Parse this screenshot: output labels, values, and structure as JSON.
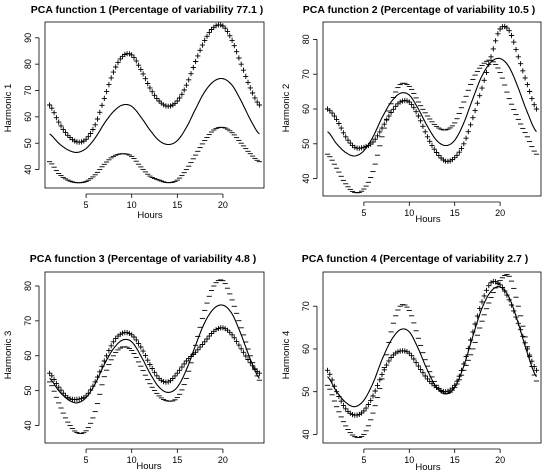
{
  "chart_data": [
    {
      "type": "line",
      "title": "PCA function 1 (Percentage of variability 77.1 )",
      "xlabel": "Hours",
      "ylabel": "Harmonic 1",
      "xlim": [
        0.5,
        24.5
      ],
      "ylim": [
        33,
        96
      ],
      "xticks": [
        5,
        10,
        15,
        20
      ],
      "yticks": [
        40,
        50,
        60,
        70,
        80,
        90
      ],
      "series": [
        {
          "marker": "line",
          "x": [
            1,
            2,
            3,
            4,
            5,
            6,
            7,
            8,
            9,
            10,
            11,
            12,
            13,
            14,
            15,
            16,
            17,
            18,
            19,
            20,
            21,
            22,
            23,
            24
          ],
          "values": [
            53.5,
            50,
            47.5,
            46.5,
            48,
            52,
            57.5,
            62,
            64.5,
            64,
            60,
            55,
            51,
            49.5,
            51,
            56,
            63,
            69.5,
            73.5,
            74.5,
            72,
            66,
            59,
            53.5
          ]
        },
        {
          "marker": "plus",
          "x": [
            1,
            2,
            3,
            4,
            5,
            6,
            7,
            8,
            9,
            10,
            11,
            12,
            13,
            14,
            15,
            16,
            17,
            18,
            19,
            20,
            21,
            22,
            23,
            24
          ],
          "values": [
            64.5,
            58,
            53,
            50.5,
            51.5,
            57,
            67,
            77,
            83,
            83.5,
            78,
            71,
            66,
            64,
            66,
            72,
            81,
            89,
            94,
            94.5,
            89,
            80,
            71,
            64.5
          ]
        },
        {
          "marker": "minus",
          "x": [
            1,
            2,
            3,
            4,
            5,
            6,
            7,
            8,
            9,
            10,
            11,
            12,
            13,
            14,
            15,
            16,
            17,
            18,
            19,
            20,
            21,
            22,
            23,
            24
          ],
          "values": [
            43,
            38.5,
            36,
            35,
            35.5,
            38,
            42,
            45,
            46,
            45,
            41,
            37.5,
            36,
            35,
            36,
            40,
            45.5,
            51,
            55,
            56,
            54,
            50,
            46,
            43
          ]
        }
      ]
    },
    {
      "type": "line",
      "title": "PCA function 2 (Percentage of variability 10.5 )",
      "xlabel": "Hours",
      "ylabel": "Harmonic 2",
      "xlim": [
        0.5,
        24.5
      ],
      "ylim": [
        35,
        85
      ],
      "xticks": [
        5,
        10,
        15,
        20
      ],
      "yticks": [
        40,
        50,
        60,
        70,
        80
      ],
      "series": [
        {
          "marker": "line",
          "x": [
            1,
            2,
            3,
            4,
            5,
            6,
            7,
            8,
            9,
            10,
            11,
            12,
            13,
            14,
            15,
            16,
            17,
            18,
            19,
            20,
            21,
            22,
            23,
            24
          ],
          "values": [
            53.5,
            50,
            47.5,
            46.5,
            48,
            52,
            57.5,
            62,
            64.5,
            64,
            60,
            55,
            51,
            49.5,
            51,
            56,
            63,
            69.5,
            73.5,
            74.5,
            72,
            66,
            59,
            53.5
          ]
        },
        {
          "marker": "plus",
          "x": [
            1,
            2,
            3,
            4,
            5,
            6,
            7,
            8,
            9,
            10,
            11,
            12,
            13,
            14,
            15,
            16,
            17,
            18,
            19,
            20,
            21,
            22,
            23,
            24
          ],
          "values": [
            60,
            57,
            52,
            49,
            49,
            50.5,
            54.5,
            59,
            62,
            62,
            58,
            52,
            47.5,
            45,
            46,
            50,
            57.5,
            66,
            75,
            83,
            82.5,
            75,
            67,
            60
          ]
        },
        {
          "marker": "minus",
          "x": [
            1,
            2,
            3,
            4,
            5,
            6,
            7,
            8,
            9,
            10,
            11,
            12,
            13,
            14,
            15,
            16,
            17,
            18,
            19,
            20,
            21,
            22,
            23,
            24
          ],
          "values": [
            47,
            43,
            38.5,
            36,
            37,
            42,
            52,
            61.5,
            67,
            66.5,
            62,
            58,
            55,
            54,
            56,
            62,
            68.5,
            72.5,
            74,
            70.5,
            63,
            57,
            52,
            47
          ]
        }
      ]
    },
    {
      "type": "line",
      "title": "PCA function 3 (Percentage of variability 4.8 )",
      "xlabel": "Hours",
      "ylabel": "Harmonic 3",
      "xlim": [
        0.5,
        24.5
      ],
      "ylim": [
        35,
        84
      ],
      "xticks": [
        5,
        10,
        15,
        20
      ],
      "yticks": [
        40,
        50,
        60,
        70,
        80
      ],
      "series": [
        {
          "marker": "line",
          "x": [
            1,
            2,
            3,
            4,
            5,
            6,
            7,
            8,
            9,
            10,
            11,
            12,
            13,
            14,
            15,
            16,
            17,
            18,
            19,
            20,
            21,
            22,
            23,
            24
          ],
          "values": [
            53.5,
            50,
            47.5,
            46.5,
            48,
            52,
            57.5,
            62,
            64.5,
            64,
            60,
            55,
            51,
            49.5,
            51,
            56,
            63,
            69.5,
            73.5,
            74.5,
            72,
            66,
            59,
            53.5
          ]
        },
        {
          "marker": "plus",
          "x": [
            1,
            2,
            3,
            4,
            5,
            6,
            7,
            8,
            9,
            10,
            11,
            12,
            13,
            14,
            15,
            16,
            17,
            18,
            19,
            20,
            21,
            22,
            23,
            24
          ],
          "values": [
            55,
            51,
            48,
            47.5,
            48.5,
            52.5,
            58.5,
            64,
            66.5,
            66,
            62.5,
            57.5,
            53.5,
            52.5,
            55,
            58.5,
            61,
            64,
            67,
            68,
            66,
            62,
            58,
            55
          ]
        },
        {
          "marker": "minus",
          "x": [
            1,
            2,
            3,
            4,
            5,
            6,
            7,
            8,
            9,
            10,
            11,
            12,
            13,
            14,
            15,
            16,
            17,
            18,
            19,
            20,
            21,
            22,
            23,
            24
          ],
          "values": [
            52.5,
            46.5,
            41,
            38,
            38.5,
            44,
            54,
            60,
            62.5,
            61.5,
            57,
            52,
            48.5,
            47,
            48,
            53.5,
            63,
            73,
            80,
            81.5,
            76,
            68,
            60,
            53
          ]
        }
      ]
    },
    {
      "type": "line",
      "title": "PCA function 4 (Percentage of variability 2.7 )",
      "xlabel": "Hours",
      "ylabel": "Harmonic 4",
      "xlim": [
        0.5,
        24.5
      ],
      "ylim": [
        38,
        78
      ],
      "xticks": [
        5,
        10,
        15,
        20
      ],
      "yticks": [
        40,
        50,
        60,
        70
      ],
      "series": [
        {
          "marker": "line",
          "x": [
            1,
            2,
            3,
            4,
            5,
            6,
            7,
            8,
            9,
            10,
            11,
            12,
            13,
            14,
            15,
            16,
            17,
            18,
            19,
            20,
            21,
            22,
            23,
            24
          ],
          "values": [
            53.5,
            50,
            47.5,
            46.5,
            48,
            52,
            57.5,
            62,
            64.5,
            64,
            60,
            55,
            51,
            49.5,
            51,
            56,
            63,
            69.5,
            73.5,
            74.5,
            72,
            66,
            59,
            53.5
          ]
        },
        {
          "marker": "plus",
          "x": [
            1,
            2,
            3,
            4,
            5,
            6,
            7,
            8,
            9,
            10,
            11,
            12,
            13,
            14,
            15,
            16,
            17,
            18,
            19,
            20,
            21,
            22,
            23,
            24
          ],
          "values": [
            55,
            50,
            46,
            44.5,
            45.5,
            49,
            54,
            58,
            59.5,
            59,
            56,
            53,
            51,
            50,
            51.5,
            56.5,
            64,
            71,
            75.5,
            75,
            71.5,
            66,
            60,
            55
          ]
        },
        {
          "marker": "minus",
          "x": [
            1,
            2,
            3,
            4,
            5,
            6,
            7,
            8,
            9,
            10,
            11,
            12,
            13,
            14,
            15,
            16,
            17,
            18,
            19,
            20,
            21,
            22,
            23,
            24
          ],
          "values": [
            51.5,
            46.5,
            42,
            39.5,
            40,
            45,
            53,
            64,
            70,
            69,
            62.5,
            56,
            51.5,
            49.5,
            51,
            55,
            60,
            66.5,
            72,
            76,
            77,
            70,
            60.5,
            52.5
          ]
        }
      ]
    }
  ]
}
